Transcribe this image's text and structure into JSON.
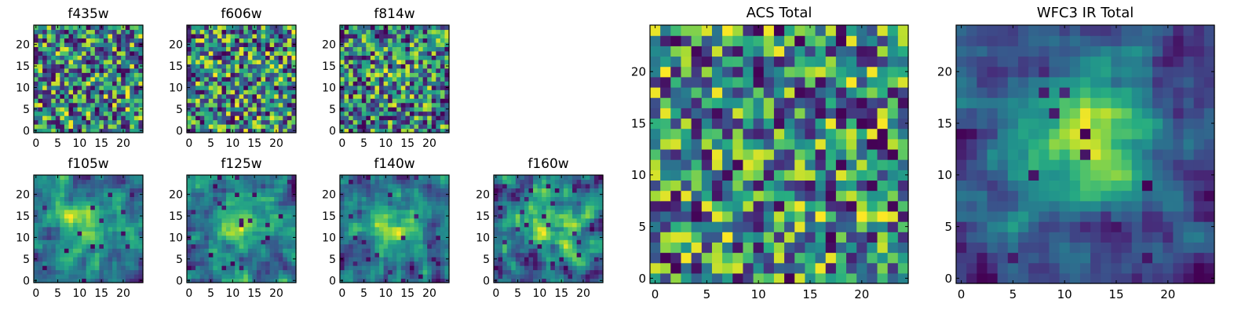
{
  "chart_data": [
    {
      "id": "f435w",
      "type": "heatmap",
      "title": "f435w",
      "size": 25,
      "xticks": [
        0,
        5,
        10,
        15,
        20
      ],
      "yticks": [
        0,
        5,
        10,
        15,
        20
      ],
      "xlim": [
        0,
        25
      ],
      "ylim": [
        0,
        25
      ],
      "colormap": "viridis",
      "pattern": "noise",
      "seed": 11,
      "low_pixels": 0.06,
      "center_peak": 0.0
    },
    {
      "id": "f606w",
      "type": "heatmap",
      "title": "f606w",
      "size": 25,
      "xticks": [
        0,
        5,
        10,
        15,
        20
      ],
      "yticks": [
        0,
        5,
        10,
        15,
        20
      ],
      "xlim": [
        0,
        25
      ],
      "ylim": [
        0,
        25
      ],
      "colormap": "viridis",
      "pattern": "noise",
      "seed": 23,
      "low_pixels": 0.05,
      "center_peak": 0.0
    },
    {
      "id": "f814w",
      "type": "heatmap",
      "title": "f814w",
      "size": 25,
      "xticks": [
        0,
        5,
        10,
        15,
        20
      ],
      "yticks": [
        0,
        5,
        10,
        15,
        20
      ],
      "xlim": [
        0,
        25
      ],
      "ylim": [
        0,
        25
      ],
      "colormap": "viridis",
      "pattern": "noise",
      "seed": 37,
      "low_pixels": 0.08,
      "center_peak": 0.05
    },
    {
      "id": "f105w",
      "type": "heatmap",
      "title": "f105w",
      "size": 25,
      "xticks": [
        0,
        5,
        10,
        15,
        20
      ],
      "yticks": [
        0,
        5,
        10,
        15,
        20
      ],
      "xlim": [
        0,
        25
      ],
      "ylim": [
        0,
        25
      ],
      "colormap": "viridis",
      "pattern": "smooth",
      "seed": 41,
      "low_pixels": 0.04,
      "center_peak": 0.35
    },
    {
      "id": "f125w",
      "type": "heatmap",
      "title": "f125w",
      "size": 25,
      "xticks": [
        0,
        5,
        10,
        15,
        20
      ],
      "yticks": [
        0,
        5,
        10,
        15,
        20
      ],
      "xlim": [
        0,
        25
      ],
      "ylim": [
        0,
        25
      ],
      "colormap": "viridis",
      "pattern": "smooth",
      "seed": 53,
      "low_pixels": 0.04,
      "center_peak": 0.3
    },
    {
      "id": "f140w",
      "type": "heatmap",
      "title": "f140w",
      "size": 25,
      "xticks": [
        0,
        5,
        10,
        15,
        20
      ],
      "yticks": [
        0,
        5,
        10,
        15,
        20
      ],
      "xlim": [
        0,
        25
      ],
      "ylim": [
        0,
        25
      ],
      "colormap": "viridis",
      "pattern": "smooth",
      "seed": 67,
      "low_pixels": 0.05,
      "center_peak": 0.35
    },
    {
      "id": "f160w",
      "type": "heatmap",
      "title": "f160w",
      "size": 25,
      "xticks": [
        0,
        5,
        10,
        15,
        20
      ],
      "yticks": [
        0,
        5,
        10,
        15,
        20
      ],
      "xlim": [
        0,
        25
      ],
      "ylim": [
        0,
        25
      ],
      "colormap": "viridis",
      "pattern": "smooth",
      "seed": 79,
      "low_pixels": 0.06,
      "center_peak": 0.35
    },
    {
      "id": "acs-total",
      "type": "heatmap",
      "title": "ACS Total",
      "size": 25,
      "xticks": [
        0,
        5,
        10,
        15,
        20
      ],
      "yticks": [
        0,
        5,
        10,
        15,
        20
      ],
      "xlim": [
        0,
        25
      ],
      "ylim": [
        0,
        25
      ],
      "colormap": "viridis",
      "pattern": "noise",
      "seed": 97,
      "low_pixels": 0.03,
      "center_peak": 0.0
    },
    {
      "id": "wfc3-ir-total",
      "type": "heatmap",
      "title": "WFC3 IR Total",
      "size": 25,
      "xticks": [
        0,
        5,
        10,
        15,
        20
      ],
      "yticks": [
        0,
        5,
        10,
        15,
        20
      ],
      "xlim": [
        0,
        25
      ],
      "ylim": [
        0,
        25
      ],
      "colormap": "viridis",
      "pattern": "smooth",
      "seed": 131,
      "low_pixels": 0.03,
      "center_peak": 0.55
    }
  ]
}
